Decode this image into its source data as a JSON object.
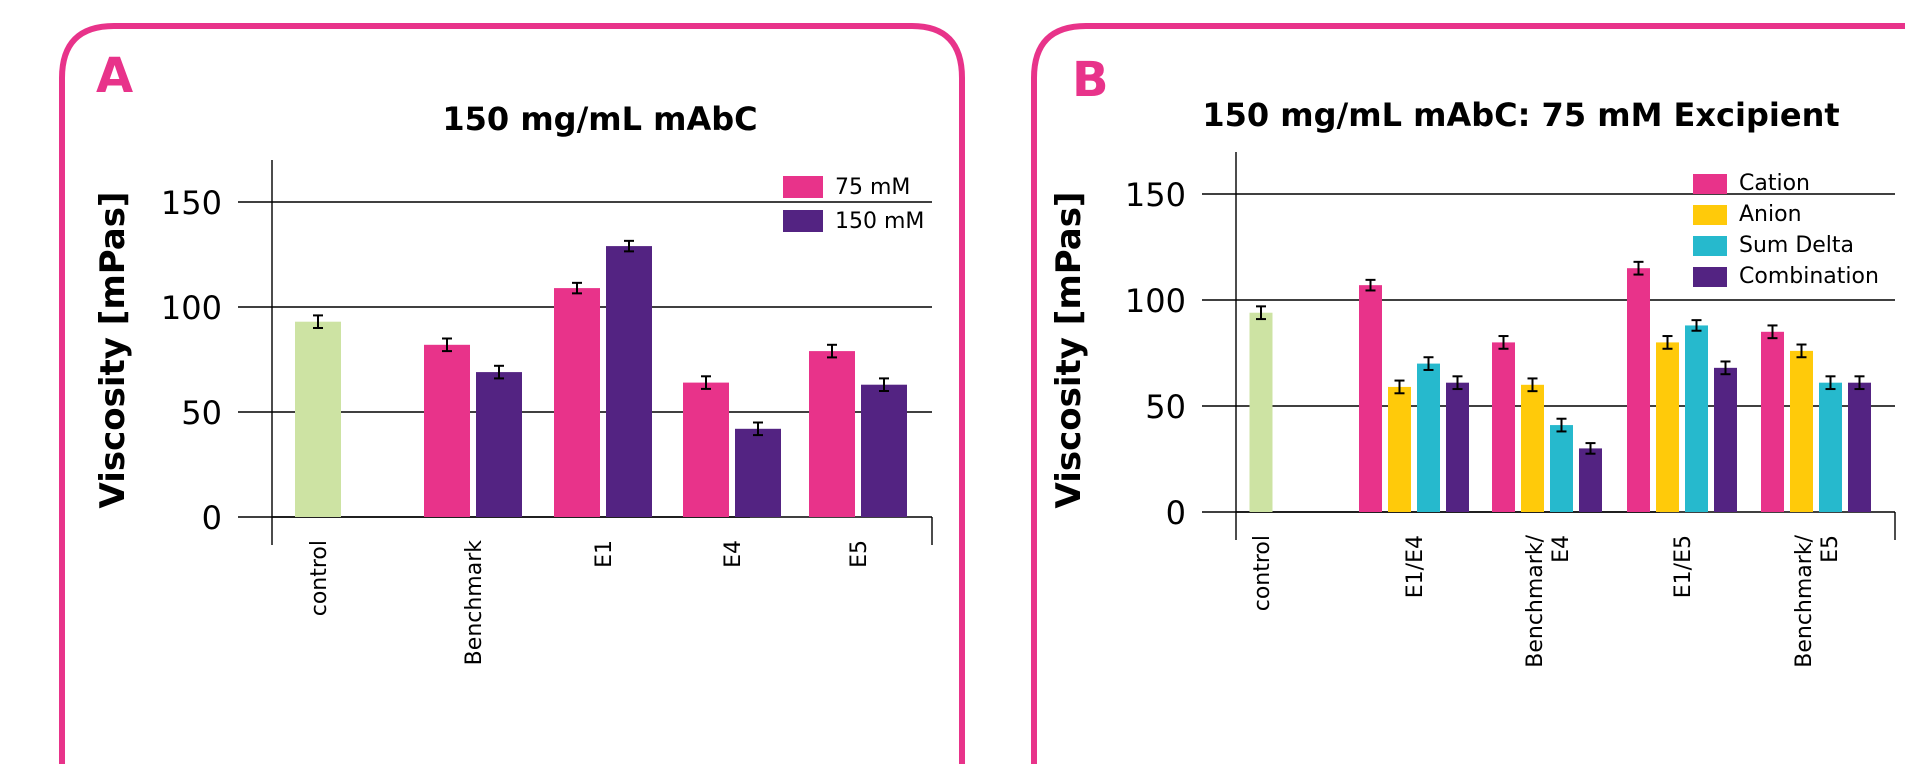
{
  "colors": {
    "border": "#e8338a",
    "control": "#cde3a3",
    "pink": "#e8338a",
    "purple": "#532382",
    "yellow": "#ffca0a",
    "cyan": "#26b9cd",
    "grid": "#000000"
  },
  "chart_data": [
    {
      "panel": "A",
      "type": "bar",
      "title": "150 mg/mL mAbC",
      "ylabel": "Viscosity [mPas]",
      "xlabel": "",
      "ylim": [
        0,
        150
      ],
      "yticks": [
        "0",
        "50",
        "100",
        "150"
      ],
      "grid": true,
      "legend_position": "top-right",
      "error_bars": true,
      "categories": [
        [
          "control"
        ],
        [
          "Benchmark"
        ],
        [
          "E1"
        ],
        [
          "E4"
        ],
        [
          "E5"
        ]
      ],
      "control": {
        "name": "control",
        "value": 93,
        "error": 3,
        "color_key": "control"
      },
      "series": [
        {
          "name": "75 mM",
          "color_key": "pink",
          "values": [
            null,
            82,
            109,
            64,
            79
          ],
          "errors": [
            null,
            3,
            2.5,
            3,
            3
          ]
        },
        {
          "name": "150 mM",
          "color_key": "purple",
          "values": [
            null,
            69,
            129,
            42,
            63
          ],
          "errors": [
            null,
            3,
            2.5,
            3,
            3
          ]
        }
      ]
    },
    {
      "panel": "B",
      "type": "bar",
      "title": "150 mg/mL mAbC: 75 mM Excipient",
      "ylabel": "Viscosity [mPas]",
      "xlabel": "",
      "ylim": [
        0,
        150
      ],
      "yticks": [
        "0",
        "50",
        "100",
        "150"
      ],
      "grid": true,
      "legend_position": "top-right",
      "error_bars": true,
      "categories": [
        [
          "control"
        ],
        [
          "E1/E4"
        ],
        [
          "Benchmark/",
          "E4"
        ],
        [
          "E1/E5"
        ],
        [
          "Benchmark/",
          "E5"
        ]
      ],
      "control": {
        "name": "control",
        "value": 94,
        "error": 3,
        "color_key": "control"
      },
      "series": [
        {
          "name": "Cation",
          "color_key": "pink",
          "values": [
            null,
            107,
            80,
            115,
            85
          ],
          "errors": [
            null,
            2.5,
            3,
            3,
            3
          ]
        },
        {
          "name": "Anion",
          "color_key": "yellow",
          "values": [
            null,
            59,
            60,
            80,
            76
          ],
          "errors": [
            null,
            3,
            3,
            3,
            3
          ]
        },
        {
          "name": "Sum Delta",
          "color_key": "cyan",
          "values": [
            null,
            70,
            41,
            88,
            61
          ],
          "errors": [
            null,
            3,
            3,
            2.5,
            3
          ]
        },
        {
          "name": "Combination",
          "color_key": "purple",
          "values": [
            null,
            61,
            30,
            68,
            61
          ],
          "errors": [
            null,
            3,
            2.5,
            3,
            3
          ]
        }
      ]
    }
  ]
}
